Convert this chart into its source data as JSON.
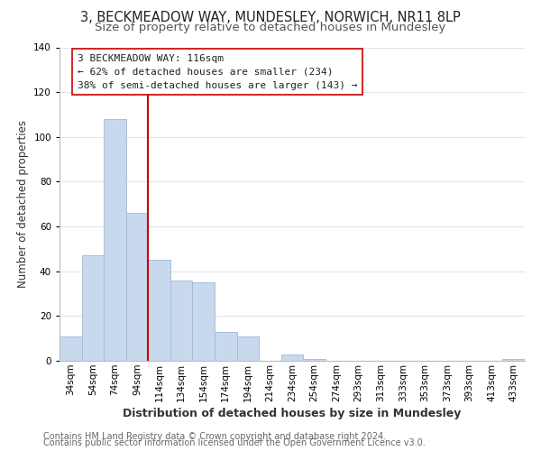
{
  "title1": "3, BECKMEADOW WAY, MUNDESLEY, NORWICH, NR11 8LP",
  "title2": "Size of property relative to detached houses in Mundesley",
  "xlabel": "Distribution of detached houses by size in Mundesley",
  "ylabel": "Number of detached properties",
  "footer1": "Contains HM Land Registry data © Crown copyright and database right 2024.",
  "footer2": "Contains public sector information licensed under the Open Government Licence v3.0.",
  "bar_labels": [
    "34sqm",
    "54sqm",
    "74sqm",
    "94sqm",
    "114sqm",
    "134sqm",
    "154sqm",
    "174sqm",
    "194sqm",
    "214sqm",
    "234sqm",
    "254sqm",
    "274sqm",
    "293sqm",
    "313sqm",
    "333sqm",
    "353sqm",
    "373sqm",
    "393sqm",
    "413sqm",
    "433sqm"
  ],
  "bar_values": [
    11,
    47,
    108,
    66,
    45,
    36,
    35,
    13,
    11,
    0,
    3,
    1,
    0,
    0,
    0,
    0,
    0,
    0,
    0,
    0,
    1
  ],
  "bar_color": "#c8d9ed",
  "bar_edge_color": "#a0b8d8",
  "subject_line_index": 4,
  "subject_line_color": "#cc0000",
  "annotation_line1": "3 BECKMEADOW WAY: 116sqm",
  "annotation_line2": "← 62% of detached houses are smaller (234)",
  "annotation_line3": "38% of semi-detached houses are larger (143) →",
  "annotation_box_color": "#ffffff",
  "annotation_box_edge": "#cc0000",
  "ylim": [
    0,
    140
  ],
  "yticks": [
    0,
    20,
    40,
    60,
    80,
    100,
    120,
    140
  ],
  "background_color": "#ffffff",
  "grid_color": "#dde5f0",
  "title1_fontsize": 10.5,
  "title2_fontsize": 9.5,
  "xlabel_fontsize": 9,
  "ylabel_fontsize": 8.5,
  "tick_fontsize": 7.5,
  "annotation_fontsize": 8,
  "footer_fontsize": 7
}
